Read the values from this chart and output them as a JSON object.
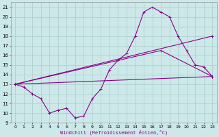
{
  "xlabel": "Windchill (Refroidissement éolien,°C)",
  "background_color": "#cce8e8",
  "grid_color": "#aacccc",
  "line_color": "#880088",
  "x_ticks": [
    0,
    1,
    2,
    3,
    4,
    5,
    6,
    7,
    8,
    9,
    10,
    11,
    12,
    13,
    14,
    15,
    16,
    17,
    18,
    19,
    20,
    21,
    22,
    23
  ],
  "y_ticks": [
    9,
    10,
    11,
    12,
    13,
    14,
    15,
    16,
    17,
    18,
    19,
    20,
    21
  ],
  "ylim": [
    9,
    21.5
  ],
  "xlim": [
    -0.5,
    23.5
  ],
  "series_main": {
    "x": [
      0,
      1,
      2,
      3,
      4,
      5,
      6,
      7,
      8,
      9,
      10,
      11,
      12,
      13,
      14,
      15,
      16,
      17,
      18,
      19,
      20,
      21,
      22,
      23
    ],
    "y": [
      13,
      12.7,
      12,
      11.5,
      10,
      10.3,
      10.5,
      9.5,
      9.7,
      11.5,
      12.5,
      14.5,
      15.5,
      16.2,
      18,
      20.5,
      21,
      20.5,
      20,
      18,
      16.5,
      15,
      14.8,
      13.8
    ]
  },
  "series_line1": {
    "x": [
      0,
      23
    ],
    "y": [
      13,
      13.8
    ]
  },
  "series_line2": {
    "x": [
      0,
      23
    ],
    "y": [
      13,
      18
    ]
  },
  "series_line3": {
    "x": [
      0,
      17,
      23
    ],
    "y": [
      13,
      16.5,
      13.8
    ]
  }
}
